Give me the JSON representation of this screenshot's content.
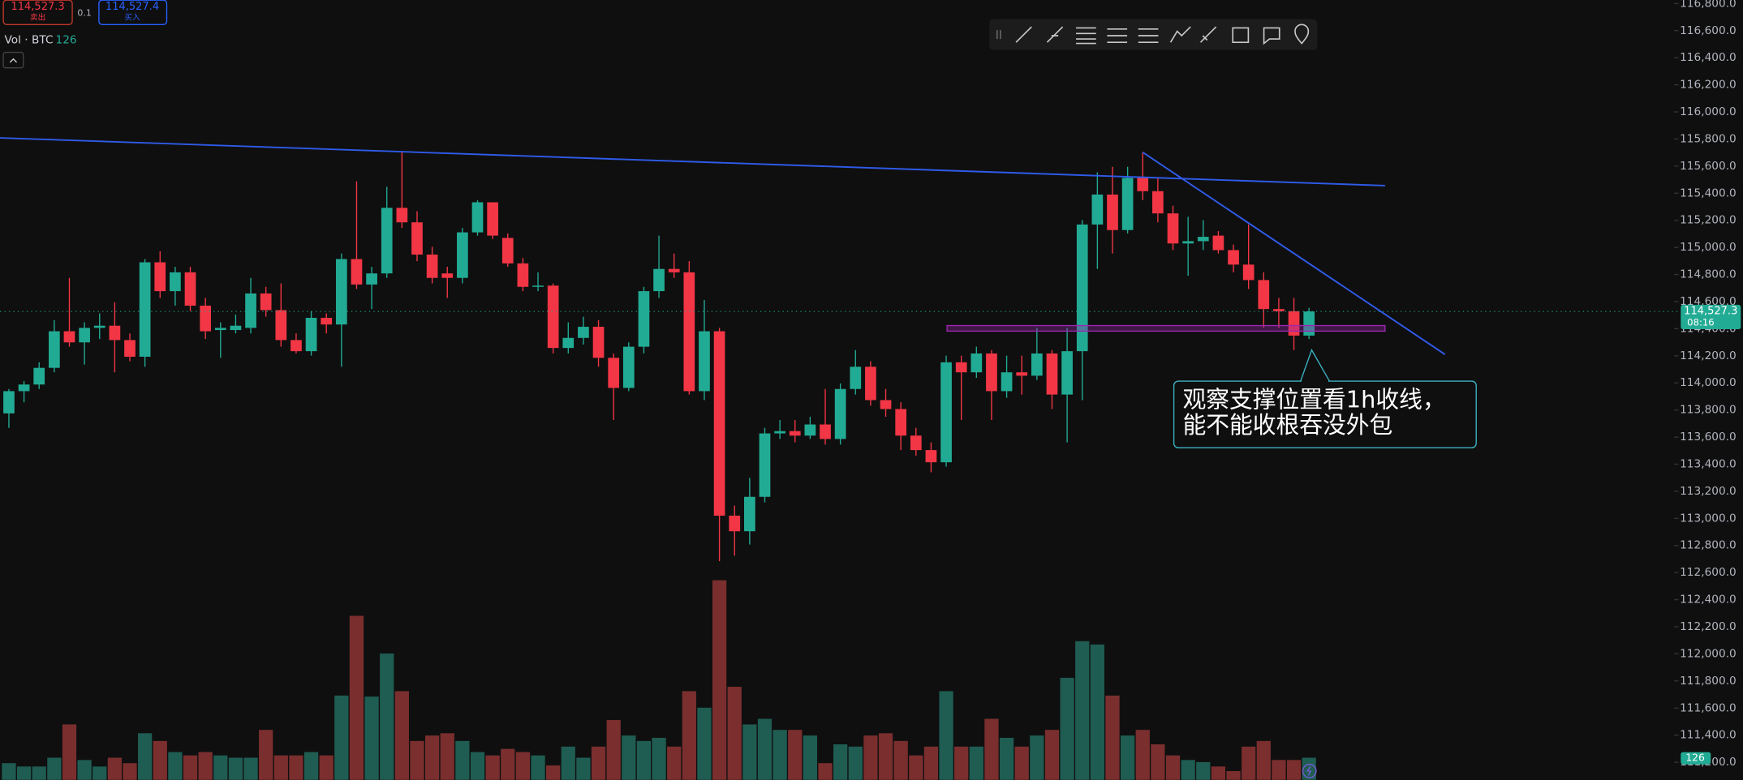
{
  "header": {
    "bid": {
      "price": "114,527.3",
      "label": "卖出"
    },
    "spread": "0.1",
    "ask": {
      "price": "114,527.4",
      "label": "买入"
    },
    "volume_title": "Vol · BTC"
  },
  "annotation": {
    "lines": [
      "观察支撑位置看1h收线，",
      "能不能收根吞没外包"
    ]
  },
  "chart_data": {
    "type": "candlestick",
    "up_color": "#22ab94",
    "down_color": "#f23645",
    "volume_up_color": "#1f5c52",
    "volume_down_color": "#7a2e2e",
    "open": [
      113775,
      113939,
      113988,
      114111,
      114381,
      114299,
      114406,
      114422,
      114316,
      114193,
      114890,
      114677,
      114816,
      114570,
      114390,
      114390,
      114406,
      114660,
      114537,
      114316,
      114234,
      114480,
      114431,
      114914,
      114726,
      114808,
      115292,
      115185,
      114947,
      114808,
      114775,
      115111,
      115333,
      115070,
      114882,
      114709,
      114718,
      114258,
      114332,
      114414,
      114185,
      113963,
      114267,
      114677,
      114841,
      114816,
      113939,
      114381,
      113020,
      112905,
      113159,
      113627,
      113644,
      113611,
      113693,
      113586,
      113955,
      114119,
      113873,
      113807,
      113611,
      113504,
      113414,
      114152,
      114078,
      114217,
      113939,
      114078,
      114053,
      114217,
      113914,
      114234,
      115169,
      115390,
      115128,
      115513,
      115415,
      115251,
      115029,
      115046,
      115087,
      114980,
      114873,
      114759,
      114545,
      114529,
      114349
    ],
    "high": [
      113955,
      114013,
      114152,
      114463,
      114775,
      114447,
      114513,
      114595,
      114365,
      114914,
      114972,
      114857,
      114857,
      114627,
      114447,
      114504,
      114775,
      114709,
      114734,
      114365,
      114529,
      114513,
      114955,
      115488,
      114857,
      115447,
      115702,
      115267,
      115005,
      114857,
      115144,
      115349,
      115333,
      115103,
      114922,
      114816,
      114734,
      114447,
      114488,
      114463,
      114217,
      114299,
      114709,
      115087,
      114955,
      114898,
      114611,
      114406,
      113094,
      113299,
      113668,
      113726,
      113726,
      113750,
      113955,
      113996,
      114242,
      114160,
      113955,
      113857,
      113668,
      113561,
      114201,
      114201,
      114267,
      114242,
      114201,
      114201,
      114406,
      114242,
      114406,
      115201,
      115554,
      115595,
      115595,
      115702,
      115513,
      115308,
      115226,
      115201,
      115120,
      115021,
      115169,
      114816,
      114627,
      114627,
      114554
    ],
    "low": [
      113668,
      113857,
      113955,
      114078,
      114267,
      114135,
      114324,
      114078,
      114160,
      114119,
      114627,
      114570,
      114529,
      114324,
      114185,
      114365,
      114365,
      114488,
      114267,
      114217,
      114201,
      114365,
      114119,
      114693,
      114545,
      114775,
      115144,
      114898,
      114734,
      114627,
      114734,
      115087,
      115062,
      114857,
      114677,
      114677,
      114217,
      114217,
      114283,
      114119,
      113726,
      113939,
      114217,
      114627,
      114775,
      113914,
      113873,
      112684,
      112725,
      112807,
      113118,
      113586,
      113561,
      113586,
      113545,
      113545,
      113914,
      113832,
      113750,
      113504,
      113463,
      113340,
      113381,
      113726,
      114037,
      113726,
      113890,
      113914,
      114021,
      113807,
      113561,
      113873,
      114841,
      114955,
      115103,
      115349,
      115185,
      114980,
      114791,
      114980,
      114955,
      114816,
      114693,
      114406,
      114406,
      114242,
      114324
    ],
    "close": [
      113939,
      113988,
      114111,
      114381,
      114299,
      114406,
      114422,
      114316,
      114193,
      114890,
      114677,
      114816,
      114570,
      114381,
      114406,
      114422,
      114660,
      114537,
      114316,
      114234,
      114480,
      114431,
      114914,
      114726,
      114808,
      115292,
      115185,
      114947,
      114775,
      114775,
      115111,
      115333,
      115087,
      114882,
      114709,
      114718,
      114258,
      114332,
      114414,
      114185,
      113963,
      114267,
      114677,
      114841,
      114816,
      113939,
      114381,
      113020,
      112905,
      113159,
      113627,
      113644,
      113611,
      113693,
      113586,
      113955,
      114119,
      113873,
      113807,
      113611,
      113504,
      113414,
      114152,
      114078,
      114217,
      113939,
      114078,
      114053,
      114217,
      113914,
      114234,
      115169,
      115390,
      115128,
      115513,
      115415,
      115251,
      115029,
      115046,
      115078,
      114980,
      114873,
      114759,
      114545,
      114529,
      114349,
      114527.3
    ],
    "volume": [
      95,
      76,
      76,
      126,
      315,
      113,
      76,
      126,
      95,
      265,
      221,
      158,
      139,
      158,
      139,
      126,
      126,
      284,
      139,
      139,
      158,
      139,
      479,
      932,
      473,
      718,
      504,
      221,
      252,
      265,
      221,
      158,
      139,
      176,
      158,
      139,
      82,
      189,
      126,
      189,
      340,
      252,
      221,
      239,
      189,
      504,
      410,
      1134,
      529,
      315,
      347,
      284,
      284,
      252,
      95,
      202,
      189,
      252,
      265,
      221,
      139,
      189,
      504,
      189,
      189,
      347,
      239,
      189,
      252,
      284,
      580,
      788,
      769,
      479,
      252,
      284,
      202,
      139,
      113,
      101,
      76,
      50,
      189,
      221,
      113,
      113,
      126
    ],
    "vlim": [
      0,
      1300
    ],
    "ylim": [
      111070,
      116825
    ],
    "yticks": [
      {
        "value": 116800,
        "label": "116,800.0"
      },
      {
        "value": 116600,
        "label": "116,600.0"
      },
      {
        "value": 116400,
        "label": "116,400.0"
      },
      {
        "value": 116200,
        "label": "116,200.0"
      },
      {
        "value": 116000,
        "label": "116,000.0"
      },
      {
        "value": 115800,
        "label": "115,800.0"
      },
      {
        "value": 115600,
        "label": "115,600.0"
      },
      {
        "value": 115400,
        "label": "115,400.0"
      },
      {
        "value": 115200,
        "label": "115,200.0"
      },
      {
        "value": 115000,
        "label": "115,000.0"
      },
      {
        "value": 114800,
        "label": "114,800.0"
      },
      {
        "value": 114600,
        "label": "114,600.0"
      },
      {
        "value": 114400,
        "label": "114,400.0"
      },
      {
        "value": 114200,
        "label": "114,200.0"
      },
      {
        "value": 114000,
        "label": "114,000.0"
      },
      {
        "value": 113800,
        "label": "113,800.0"
      },
      {
        "value": 113600,
        "label": "113,600.0"
      },
      {
        "value": 113400,
        "label": "113,400.0"
      },
      {
        "value": 113200,
        "label": "113,200.0"
      },
      {
        "value": 113000,
        "label": "113,000.0"
      },
      {
        "value": 112800,
        "label": "112,800.0"
      },
      {
        "value": 112600,
        "label": "112,600.0"
      },
      {
        "value": 112400,
        "label": "112,400.0"
      },
      {
        "value": 112200,
        "label": "112,200.0"
      },
      {
        "value": 112000,
        "label": "112,000.0"
      },
      {
        "value": 111800,
        "label": "111,800.0"
      },
      {
        "value": 111600,
        "label": "111,600.0"
      },
      {
        "value": 111400,
        "label": "111,400.0"
      },
      {
        "value": 111200,
        "label": "111,200.0"
      }
    ],
    "current_price": {
      "value": 114527.3,
      "label": "114,527.3",
      "time": "08:16"
    }
  }
}
